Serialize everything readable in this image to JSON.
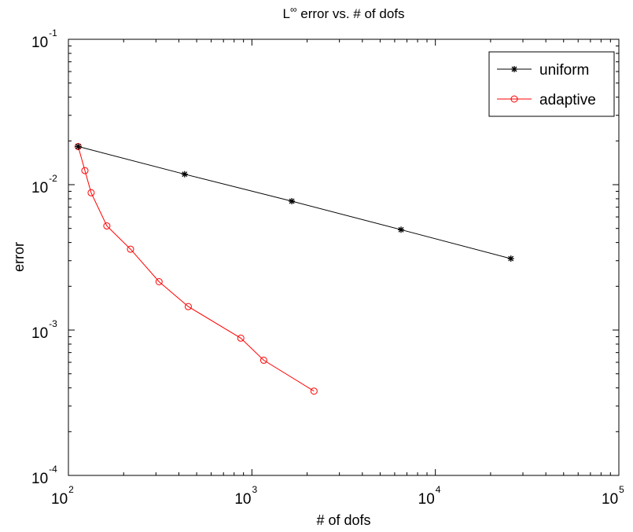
{
  "chart_data": {
    "type": "line",
    "title": {
      "prefix": "L",
      "superscript": "∞",
      "suffix": " error vs. # of dofs"
    },
    "xlabel": "# of dofs",
    "ylabel": "error",
    "xscale": "log",
    "yscale": "log",
    "xlim": [
      100,
      100000
    ],
    "ylim": [
      0.0001,
      0.1
    ],
    "grid": false,
    "x_ticks": [
      {
        "value": 100,
        "base": "10",
        "exp": "2"
      },
      {
        "value": 1000,
        "base": "10",
        "exp": "3"
      },
      {
        "value": 10000,
        "base": "10",
        "exp": "4"
      },
      {
        "value": 100000,
        "base": "10",
        "exp": "5"
      }
    ],
    "y_ticks": [
      {
        "value": 0.0001,
        "base": "10",
        "exp": "-4"
      },
      {
        "value": 0.001,
        "base": "10",
        "exp": "-3"
      },
      {
        "value": 0.01,
        "base": "10",
        "exp": "-2"
      },
      {
        "value": 0.1,
        "base": "10",
        "exp": "-1"
      }
    ],
    "legend_position": "top-right",
    "series": [
      {
        "name": "uniform",
        "color": "#000000",
        "marker": "asterisk",
        "x": [
          113,
          430,
          1650,
          6500,
          25800
        ],
        "y": [
          0.0183,
          0.0118,
          0.0077,
          0.0049,
          0.0031
        ]
      },
      {
        "name": "adaptive",
        "color": "#ff0000",
        "marker": "circle",
        "x": [
          113,
          123,
          133,
          162,
          218,
          312,
          450,
          870,
          1160,
          2180
        ],
        "y": [
          0.0183,
          0.0125,
          0.0088,
          0.0052,
          0.0036,
          0.00215,
          0.00145,
          0.00088,
          0.00062,
          0.00038
        ]
      }
    ]
  }
}
